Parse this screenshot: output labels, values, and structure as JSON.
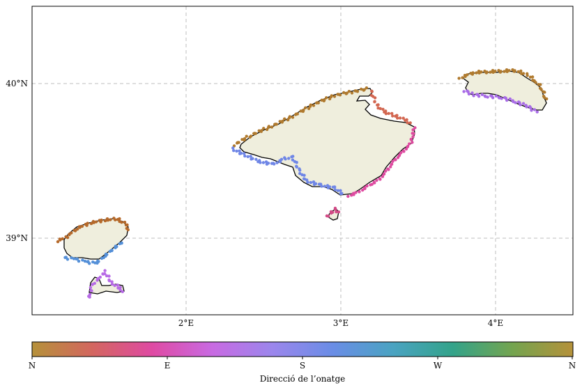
{
  "map": {
    "lat_labels": [
      {
        "lat": 40,
        "text": "40°N"
      },
      {
        "lat": 39,
        "text": "39°N"
      }
    ],
    "lon_labels": [
      {
        "lon": 2,
        "text": "2°E"
      },
      {
        "lon": 3,
        "text": "3°E"
      },
      {
        "lon": 4,
        "text": "4°E"
      }
    ],
    "extent": {
      "lon_min": 1.0,
      "lon_max": 4.5,
      "lat_min": 38.5,
      "lat_max": 40.5
    },
    "grid": true,
    "colors": {
      "land": "#efeedd",
      "coast": "#000000",
      "grid": "#bdbdbd"
    }
  },
  "colorbar": {
    "label": "Direcció de l’onatge",
    "ticks": [
      "N",
      "E",
      "S",
      "W",
      "N"
    ],
    "stops": [
      "#b5913a",
      "#d3665f",
      "#df4aa3",
      "#c86ae2",
      "#9b86ec",
      "#6a8de6",
      "#4aa3c2",
      "#33a38a",
      "#74a44f",
      "#b5913a"
    ]
  }
}
